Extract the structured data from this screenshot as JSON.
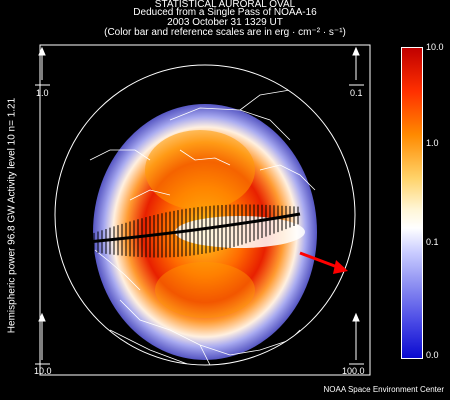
{
  "header": {
    "line1": "STATISTICAL AURORAL OVAL",
    "line2": "Deduced from a Single Pass of NOAA-16",
    "line3": "2003 October 31 1329 UT",
    "line4": "(Color bar and reference scales are in erg · cm⁻² · s⁻¹)"
  },
  "side_label": "Hemispheric power 96.8 GW   Activity level 10   n=  1.21",
  "reference_scales": {
    "top_left": "1.0",
    "top_right": "0.1",
    "bottom_left": "10.0",
    "bottom_right": "100.0"
  },
  "colorbar": {
    "labels": [
      "10.0",
      "1.0",
      "0.1",
      "0.0"
    ],
    "colors": [
      "#c00000",
      "#ff8a00",
      "#ffffff",
      "#0a0ad0"
    ]
  },
  "footer": "NOAA Space Environment Center",
  "colors": {
    "background": "#000000",
    "arrow": "#ff0000",
    "frame": "#ffffff"
  }
}
